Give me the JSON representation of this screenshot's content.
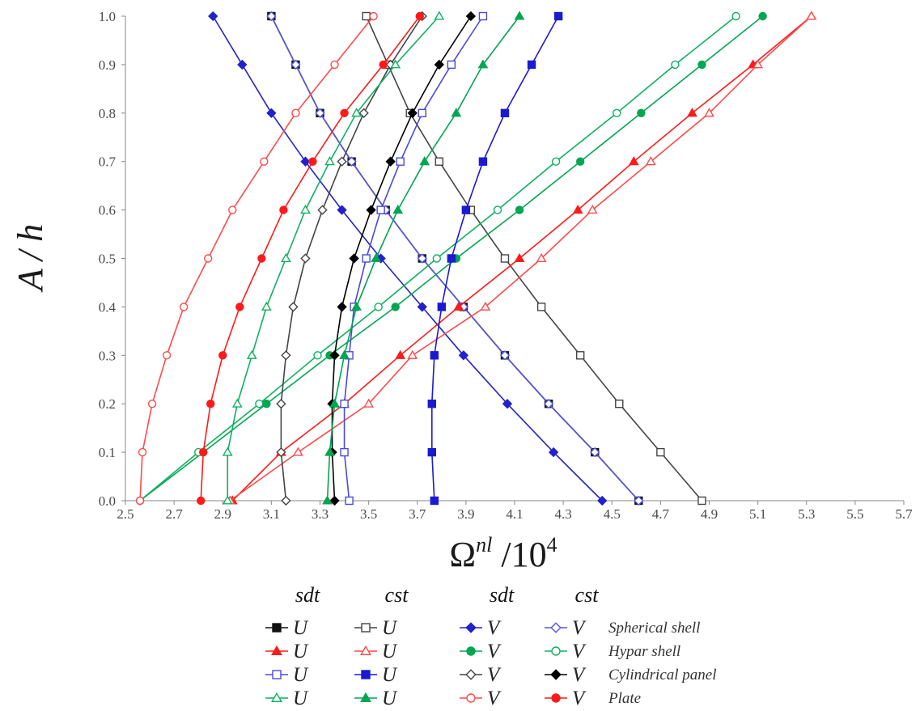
{
  "chart_data": {
    "type": "line",
    "xlabel_main": "Ω",
    "xlabel_sup": "nl",
    "xlabel_rest": " /10",
    "xlabel_exp": "4",
    "ylabel": "A / h",
    "xlim": [
      2.5,
      5.7
    ],
    "ylim": [
      0.0,
      1.0
    ],
    "x_ticks": [
      "2.5",
      "2.7",
      "2.9",
      "3.1",
      "3.3",
      "3.5",
      "3.7",
      "3.9",
      "4.1",
      "4.3",
      "4.5",
      "4.7",
      "4.9",
      "5.1",
      "5.3",
      "5.5",
      "5.7"
    ],
    "y_ticks": [
      "0.0",
      "0.1",
      "0.2",
      "0.3",
      "0.4",
      "0.5",
      "0.6",
      "0.7",
      "0.8",
      "0.9",
      "1.0"
    ],
    "y": [
      0.0,
      0.1,
      0.2,
      0.3,
      0.4,
      0.5,
      0.6,
      0.7,
      0.8,
      0.9,
      1.0
    ],
    "legend": {
      "col_headers": [
        "sdt",
        "cst",
        "sdt",
        "cst"
      ],
      "row_labels": [
        "Spherical shell",
        "Hypar shell",
        "Cylindrical panel",
        "Plate"
      ],
      "entries": [
        {
          "series": 0,
          "symbol": "U"
        },
        {
          "series": 1,
          "symbol": "U"
        },
        {
          "series": 2,
          "symbol": "V"
        },
        {
          "series": 3,
          "symbol": "V"
        },
        {
          "series": 4,
          "symbol": "U"
        },
        {
          "series": 5,
          "symbol": "U"
        },
        {
          "series": 6,
          "symbol": "V"
        },
        {
          "series": 7,
          "symbol": "V"
        },
        {
          "series": 8,
          "symbol": "U"
        },
        {
          "series": 9,
          "symbol": "U"
        },
        {
          "series": 10,
          "symbol": "V"
        },
        {
          "series": 11,
          "symbol": "V"
        },
        {
          "series": 12,
          "symbol": "U"
        },
        {
          "series": 13,
          "symbol": "U"
        },
        {
          "series": 14,
          "symbol": "V"
        },
        {
          "series": 15,
          "symbol": "V"
        }
      ]
    },
    "series": [
      {
        "color": "#111111",
        "marker": "square",
        "fill": true,
        "x": [
          4.61,
          4.43,
          4.24,
          4.06,
          3.89,
          3.72,
          3.57,
          3.43,
          3.3,
          3.2,
          3.1
        ]
      },
      {
        "color": "#444444",
        "marker": "square",
        "fill": false,
        "x": [
          4.87,
          4.7,
          4.53,
          4.37,
          4.21,
          4.06,
          3.92,
          3.79,
          3.67,
          3.58,
          3.49
        ]
      },
      {
        "color": "#2222cc",
        "marker": "diamond",
        "fill": true,
        "x": [
          4.46,
          4.26,
          4.07,
          3.89,
          3.72,
          3.55,
          3.39,
          3.24,
          3.1,
          2.98,
          2.86
        ]
      },
      {
        "color": "#5555dd",
        "marker": "diamond",
        "fill": false,
        "x": [
          4.61,
          4.43,
          4.24,
          4.06,
          3.89,
          3.72,
          3.57,
          3.43,
          3.3,
          3.2,
          3.1
        ]
      },
      {
        "color": "#ff1a1a",
        "marker": "triangle",
        "fill": true,
        "x": [
          2.94,
          3.14,
          3.4,
          3.63,
          3.87,
          4.12,
          4.36,
          4.59,
          4.83,
          5.08,
          5.32
        ]
      },
      {
        "color": "#ff4a4a",
        "marker": "triangle",
        "fill": false,
        "x": [
          2.93,
          3.21,
          3.5,
          3.68,
          3.98,
          4.21,
          4.42,
          4.66,
          4.9,
          5.1,
          5.32
        ]
      },
      {
        "color": "#00a650",
        "marker": "circle",
        "fill": true,
        "x": [
          2.56,
          2.82,
          3.08,
          3.34,
          3.61,
          3.86,
          4.12,
          4.37,
          4.62,
          4.87,
          5.12
        ]
      },
      {
        "color": "#10b060",
        "marker": "circle",
        "fill": false,
        "x": [
          2.56,
          2.8,
          3.05,
          3.29,
          3.54,
          3.78,
          4.03,
          4.27,
          4.52,
          4.76,
          5.01
        ]
      },
      {
        "color": "#4a4ad8",
        "marker": "square",
        "fill": false,
        "x": [
          3.42,
          3.4,
          3.4,
          3.42,
          3.44,
          3.49,
          3.55,
          3.63,
          3.72,
          3.84,
          3.97
        ]
      },
      {
        "color": "#1a1ad0",
        "marker": "square",
        "fill": true,
        "x": [
          3.77,
          3.76,
          3.76,
          3.77,
          3.8,
          3.84,
          3.9,
          3.97,
          4.06,
          4.17,
          4.28
        ]
      },
      {
        "color": "#444444",
        "marker": "diamond",
        "fill": false,
        "x": [
          3.16,
          3.14,
          3.14,
          3.16,
          3.19,
          3.24,
          3.31,
          3.39,
          3.48,
          3.59,
          3.72
        ]
      },
      {
        "color": "#000000",
        "marker": "diamond",
        "fill": true,
        "x": [
          3.36,
          3.35,
          3.35,
          3.36,
          3.39,
          3.44,
          3.51,
          3.59,
          3.68,
          3.79,
          3.92
        ]
      },
      {
        "color": "#10b060",
        "marker": "triangle",
        "fill": false,
        "x": [
          2.92,
          2.92,
          2.96,
          3.02,
          3.08,
          3.16,
          3.24,
          3.34,
          3.45,
          3.61,
          3.79
        ]
      },
      {
        "color": "#00a650",
        "marker": "triangle",
        "fill": true,
        "x": [
          3.33,
          3.34,
          3.36,
          3.4,
          3.45,
          3.53,
          3.62,
          3.73,
          3.86,
          3.97,
          4.12
        ]
      },
      {
        "color": "#ff4a4a",
        "marker": "circle",
        "fill": false,
        "x": [
          2.56,
          2.57,
          2.61,
          2.67,
          2.74,
          2.84,
          2.94,
          3.07,
          3.2,
          3.36,
          3.52
        ]
      },
      {
        "color": "#ff1a1a",
        "marker": "circle",
        "fill": true,
        "x": [
          2.81,
          2.82,
          2.85,
          2.9,
          2.97,
          3.06,
          3.15,
          3.27,
          3.4,
          3.56,
          3.71
        ]
      }
    ]
  }
}
